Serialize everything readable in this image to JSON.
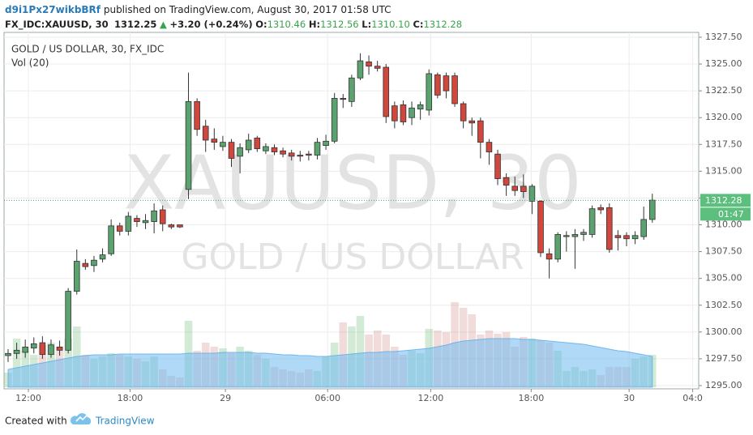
{
  "header": {
    "author": "d9i1Px27wikbBRf",
    "published": "published on TradingView.com, August 30, 2017 01:58 UTC",
    "symbol": "FX_IDC:XAUUSD, 30",
    "price": "1312.25",
    "change": "+3.20 (+0.24%)",
    "o_label": "O:",
    "o": "1310.46",
    "h_label": "H:",
    "h": "1312.56",
    "l_label": "L:",
    "l": "1310.10",
    "c_label": "C:",
    "c": "1312.28"
  },
  "footer": {
    "created": "Created with",
    "brand": "TradingView"
  },
  "chart_data": {
    "type": "candlestick",
    "title": "GOLD / US DOLLAR, 30, FX_IDC",
    "watermark": "XAUUSD, 30",
    "watermark_subtitle": "GOLD / US DOLLAR",
    "up_color": "#5aa36f",
    "down_color": "#d0473d",
    "open": [
      1297.8,
      1298.0,
      1298.1,
      1298.5,
      1299.0,
      1297.9,
      1298.6,
      1298.3,
      1303.8,
      1306.4,
      1306.2,
      1306.8,
      1307.3,
      1309.9,
      1309.4,
      1310.6,
      1310.2,
      1310.3,
      1311.4,
      1310.0,
      1310.0,
      1313.3,
      1321.5,
      1319.2,
      1318.0,
      1317.3,
      1317.7,
      1316.4,
      1317.0,
      1318.1,
      1316.9,
      1317.2,
      1316.9,
      1316.7,
      1316.5,
      1316.6,
      1316.5,
      1317.4,
      1317.8,
      1321.8,
      1321.5,
      1323.7,
      1325.2,
      1324.8,
      1324.7,
      1321.1,
      1321.2,
      1320.0,
      1320.8,
      1320.7,
      1324.0,
      1323.9,
      1323.9,
      1321.3,
      1319.7,
      1319.7,
      1317.7,
      1316.6,
      1314.4,
      1313.6,
      1313.6,
      1312.2,
      1312.2,
      1307.3,
      1306.8,
      1308.9,
      1308.9,
      1309.1,
      1309.1,
      1311.6,
      1311.6,
      1309.0,
      1309.0,
      1308.7,
      1308.9,
      1310.5
    ],
    "high": [
      1298.4,
      1299.0,
      1299.3,
      1299.5,
      1299.6,
      1299.3,
      1299.2,
      1304.1,
      1307.7,
      1306.8,
      1307.1,
      1307.8,
      1310.5,
      1310.2,
      1311.2,
      1310.9,
      1311.0,
      1312.0,
      1311.8,
      1310.1,
      1310.0,
      1324.2,
      1321.8,
      1319.8,
      1319.0,
      1318.3,
      1318.0,
      1317.6,
      1318.5,
      1318.3,
      1317.6,
      1317.5,
      1317.2,
      1317.0,
      1316.9,
      1316.9,
      1318.1,
      1318.4,
      1322.3,
      1322.2,
      1324.0,
      1326.0,
      1325.8,
      1325.3,
      1325.0,
      1321.5,
      1321.6,
      1321.5,
      1321.5,
      1324.5,
      1324.2,
      1324.2,
      1324.2,
      1321.5,
      1320.0,
      1320.0,
      1318.0,
      1317.0,
      1314.8,
      1314.5,
      1314.7,
      1313.8,
      1312.3,
      1307.8,
      1309.3,
      1309.4,
      1309.6,
      1309.6,
      1311.8,
      1311.9,
      1312.0,
      1309.5,
      1309.3,
      1309.4,
      1311.7,
      1312.9
    ],
    "low": [
      1297.2,
      1297.5,
      1297.6,
      1298.0,
      1297.5,
      1297.6,
      1297.8,
      1298.0,
      1303.5,
      1305.8,
      1305.6,
      1306.5,
      1307.1,
      1309.0,
      1309.0,
      1309.8,
      1309.6,
      1309.2,
      1309.4,
      1309.6,
      1309.7,
      1312.4,
      1318.3,
      1316.8,
      1317.0,
      1316.9,
      1315.4,
      1314.8,
      1316.7,
      1316.8,
      1316.6,
      1316.5,
      1316.3,
      1316.0,
      1315.9,
      1316.0,
      1316.1,
      1317.0,
      1317.6,
      1320.9,
      1321.0,
      1323.5,
      1324.0,
      1324.3,
      1319.5,
      1319.0,
      1319.3,
      1319.3,
      1319.8,
      1320.2,
      1321.8,
      1321.8,
      1321.0,
      1319.0,
      1318.3,
      1316.2,
      1315.6,
      1313.7,
      1312.7,
      1312.7,
      1312.5,
      1311.0,
      1307.0,
      1305.0,
      1306.5,
      1307.5,
      1305.9,
      1308.5,
      1308.8,
      1311.0,
      1307.4,
      1307.6,
      1308.0,
      1308.2,
      1308.6,
      1310.2
    ],
    "close": [
      1298.0,
      1298.3,
      1298.6,
      1298.9,
      1297.9,
      1298.8,
      1298.3,
      1303.8,
      1306.6,
      1306.1,
      1306.7,
      1307.2,
      1309.9,
      1309.4,
      1310.8,
      1310.3,
      1310.4,
      1311.3,
      1310.1,
      1309.8,
      1309.8,
      1321.5,
      1318.9,
      1317.9,
      1317.7,
      1317.7,
      1316.2,
      1317.2,
      1317.9,
      1317.1,
      1317.3,
      1316.8,
      1316.6,
      1316.4,
      1316.4,
      1316.5,
      1317.7,
      1317.8,
      1321.8,
      1321.7,
      1323.7,
      1325.3,
      1324.8,
      1324.6,
      1320.1,
      1319.7,
      1319.6,
      1320.9,
      1321.2,
      1324.1,
      1322.1,
      1322.5,
      1321.3,
      1319.7,
      1319.5,
      1317.7,
      1316.8,
      1314.3,
      1313.7,
      1313.2,
      1313.1,
      1313.6,
      1307.4,
      1306.8,
      1309.1,
      1309.0,
      1309.1,
      1309.3,
      1311.5,
      1311.4,
      1307.7,
      1308.8,
      1308.7,
      1309.0,
      1310.5,
      1312.3
    ],
    "volume": {
      "name": "Vol (20)",
      "up_color": "rgba(110,190,120,0.3)",
      "down_color": "rgba(205,110,110,0.25)",
      "ma_color": "rgba(110,185,240,0.55)",
      "values": [
        18,
        60,
        45,
        40,
        52,
        55,
        50,
        60,
        75,
        40,
        35,
        38,
        42,
        40,
        38,
        35,
        32,
        38,
        22,
        14,
        12,
        82,
        45,
        55,
        50,
        48,
        42,
        50,
        45,
        40,
        35,
        25,
        22,
        20,
        18,
        22,
        20,
        38,
        55,
        80,
        75,
        88,
        65,
        70,
        65,
        50,
        40,
        45,
        42,
        72,
        70,
        68,
        105,
        98,
        90,
        65,
        70,
        66,
        68,
        50,
        62,
        60,
        58,
        55,
        45,
        20,
        25,
        20,
        22,
        15,
        25,
        25,
        25,
        35,
        38,
        40
      ],
      "ma": [
        22,
        24,
        26,
        28,
        30,
        32,
        34,
        36,
        38,
        39,
        40,
        40,
        40,
        41,
        41,
        41,
        41,
        41,
        41,
        41,
        41,
        42,
        42,
        42,
        42,
        43,
        43,
        43,
        43,
        42,
        42,
        41,
        40,
        40,
        39,
        39,
        38,
        38,
        39,
        40,
        41,
        42,
        43,
        43,
        44,
        44,
        45,
        46,
        47,
        48,
        50,
        52,
        55,
        57,
        58,
        59,
        60,
        60,
        60,
        60,
        59,
        59,
        58,
        57,
        56,
        55,
        54,
        53,
        51,
        49,
        47,
        45,
        44,
        42,
        40,
        38
      ]
    },
    "last_price": 1312.28,
    "countdown": "01:47",
    "ylim": [
      1294.85,
      1327.95
    ],
    "yticks": [
      {
        "value": 1295,
        "label": "1295.00"
      },
      {
        "value": 1297.5,
        "label": "1297.50"
      },
      {
        "value": 1300,
        "label": "1300.00"
      },
      {
        "value": 1302.5,
        "label": "1302.50"
      },
      {
        "value": 1305,
        "label": "1305.00"
      },
      {
        "value": 1307.5,
        "label": "1307.50"
      },
      {
        "value": 1310,
        "label": "1310.00"
      },
      {
        "value": 1312.5,
        "label": "1312.50"
      },
      {
        "value": 1315,
        "label": "1315.00"
      },
      {
        "value": 1317.5,
        "label": "1317.50"
      },
      {
        "value": 1320,
        "label": "1320.00"
      },
      {
        "value": 1322.5,
        "label": "1322.50"
      },
      {
        "value": 1325,
        "label": "1325.00"
      },
      {
        "value": 1327.5,
        "label": "1327.50"
      }
    ],
    "xlim": [
      -0.47,
      80.4
    ],
    "xticks": [
      {
        "value": 2.36,
        "label": "12:00"
      },
      {
        "value": 14.2,
        "label": "18:00"
      },
      {
        "value": 25.3,
        "label": "29"
      },
      {
        "value": 37.2,
        "label": "06:00"
      },
      {
        "value": 49.2,
        "label": "12:00"
      },
      {
        "value": 60.9,
        "label": "18:00"
      },
      {
        "value": 72.3,
        "label": "30"
      },
      {
        "value": 79.7,
        "label": "04:0"
      }
    ],
    "grid": true
  }
}
